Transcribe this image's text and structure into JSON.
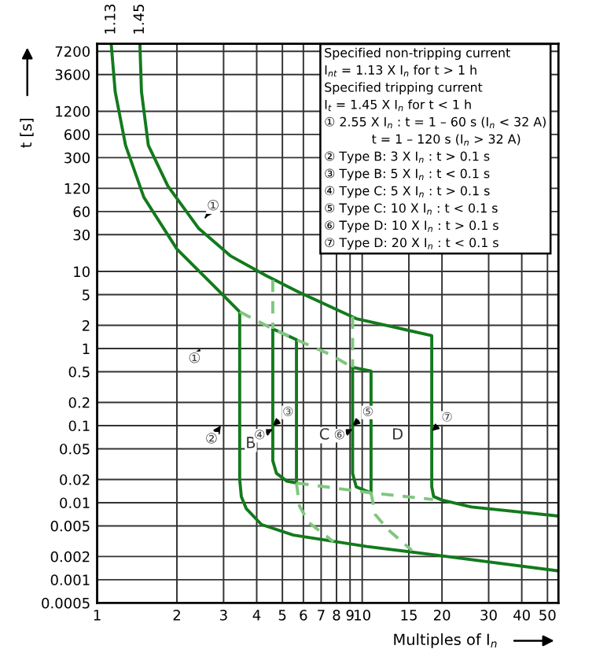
{
  "chart_data": {
    "type": "line",
    "xlabel": "Multiples of I$_{n}$",
    "ylabel": "t [s]",
    "log": "xy",
    "xlim": [
      1,
      55
    ],
    "ylim": [
      0.0005,
      9000
    ],
    "xticks": [
      1,
      2,
      3,
      4,
      5,
      6,
      7,
      8,
      9,
      10,
      15,
      20,
      30,
      40,
      50
    ],
    "yticks": [
      7200,
      3600,
      1200,
      600,
      300,
      120,
      60,
      30,
      10,
      5,
      2,
      1,
      0.5,
      0.2,
      0.1,
      0.05,
      0.02,
      0.01,
      0.005,
      0.002,
      0.001,
      0.0005
    ],
    "grid": true,
    "legend": false,
    "series": [
      {
        "color": "#137a1c",
        "line_style": "solid",
        "x": [
          1.13,
          1.17,
          1.28,
          1.5,
          2.0,
          2.78,
          3.45,
          3.45,
          3.5,
          3.65,
          4.17,
          5.5,
          10.4,
          18.8,
          55
        ],
        "values": [
          9000,
          2150,
          435,
          92,
          19.5,
          6.3,
          3.0,
          0.02,
          0.012,
          0.0084,
          0.0052,
          0.0038,
          0.0027,
          0.0021,
          0.0013
        ]
      },
      {
        "color": "#137a1c",
        "line_style": "solid",
        "x": [
          1.45,
          1.47,
          1.56,
          1.85,
          2.42,
          3.18,
          4.35,
          5.7,
          9.5,
          14.3,
          18.3,
          18.3,
          18.6,
          20,
          25.8,
          55
        ],
        "values": [
          9000,
          2150,
          435,
          128,
          36,
          16,
          8.8,
          5.5,
          2.44,
          1.78,
          1.47,
          0.016,
          0.012,
          0.0108,
          0.0088,
          0.0067
        ]
      },
      {
        "color": "#137a1c",
        "line_style": "solid",
        "x": [
          4.6,
          5.65,
          5.65
        ],
        "values": [
          1.8,
          1.3,
          0.018
        ]
      },
      {
        "color": "#137a1c",
        "line_style": "solid",
        "x": [
          4.6,
          4.6,
          4.75,
          5.2,
          5.65
        ],
        "values": [
          1.8,
          0.035,
          0.024,
          0.019,
          0.018
        ]
      },
      {
        "color": "#137a1c",
        "line_style": "solid",
        "x": [
          9.2,
          10.8,
          10.8
        ],
        "values": [
          0.57,
          0.51,
          0.0134
        ]
      },
      {
        "color": "#137a1c",
        "line_style": "solid",
        "x": [
          9.2,
          9.2,
          9.5,
          10.8
        ],
        "values": [
          0.57,
          0.024,
          0.016,
          0.0134
        ]
      },
      {
        "color": "#7fc77f",
        "line_style": "dashed",
        "x": [
          3.45,
          4.6,
          5.65,
          7.5,
          9.2
        ],
        "values": [
          3.0,
          1.8,
          1.3,
          0.85,
          0.57
        ]
      },
      {
        "color": "#7fc77f",
        "line_style": "dashed",
        "x": [
          4.6,
          4.6
        ],
        "values": [
          7.8,
          1.8
        ]
      },
      {
        "color": "#7fc77f",
        "line_style": "dashed",
        "x": [
          9.2,
          9.2
        ],
        "values": [
          2.6,
          0.57
        ]
      },
      {
        "color": "#7fc77f",
        "line_style": "dashed",
        "x": [
          5.65,
          10.8,
          18.5
        ],
        "values": [
          0.018,
          0.0134,
          0.011
        ]
      },
      {
        "color": "#7fc77f",
        "line_style": "dashed",
        "x": [
          5.65,
          5.8,
          6.3,
          7.8
        ],
        "values": [
          0.018,
          0.009,
          0.0055,
          0.0031
        ]
      },
      {
        "color": "#7fc77f",
        "line_style": "dashed",
        "x": [
          10.8,
          11.2,
          12.5,
          15.4
        ],
        "values": [
          0.0134,
          0.007,
          0.0045,
          0.0024
        ]
      }
    ],
    "annotations": [
      {
        "text": "1.13",
        "x": 1.13,
        "y": 9000
      },
      {
        "text": "1.45",
        "x": 1.45,
        "y": 9000
      },
      "Specified non-tripping current",
      "I$_{nt}$ = 1.13 X I$_{n}$ for t > 1 h",
      "Specified tripping current",
      "I$_{t}$ = 1.45 X I$_{n}$ for t < 1 h",
      "① 2.55 X I$_{n}$ : t = 1 – 60 s (I$_{n}$ < 32 A)",
      "            t = 1 – 120 s (I$_{n}$ > 32 A)",
      "② Type B: 3 X I$_{n}$ : t > 0.1 s",
      "③ Type B: 5 X I$_{n}$ : t < 0.1 s",
      "④ Type C: 5 X I$_{n}$ : t > 0.1 s",
      "⑤ Type C: 10 X I$_{n}$ : t < 0.1 s",
      "⑥ Type D: 10 X I$_{n}$ : t > 0.1 s",
      "⑦ Type D: 20 X I$_{n}$ : t < 0.1 s",
      "①",
      "①",
      "②",
      "B",
      "C",
      "D",
      {
        "text": "③",
        "x": 4.6,
        "y": 0.1
      },
      {
        "text": "④",
        "x": 4.6,
        "y": 0.09
      },
      {
        "text": "⑤",
        "x": 9.2,
        "y": 0.1
      },
      {
        "text": "⑥",
        "x": 9.2,
        "y": 0.09
      },
      {
        "text": "⑦",
        "x": 18.3,
        "y": 0.085
      }
    ]
  }
}
